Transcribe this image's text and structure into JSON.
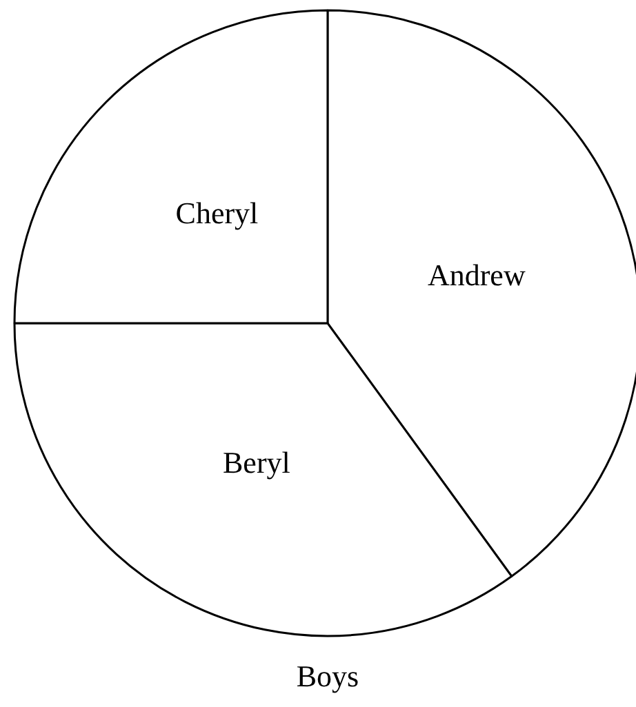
{
  "chart_data": {
    "type": "pie",
    "title": "Boys",
    "categories": [
      "Andrew",
      "Beryl",
      "Cheryl"
    ],
    "values": [
      40,
      35,
      25
    ],
    "colors": [
      "#ffffff",
      "#ffffff",
      "#ffffff"
    ]
  }
}
